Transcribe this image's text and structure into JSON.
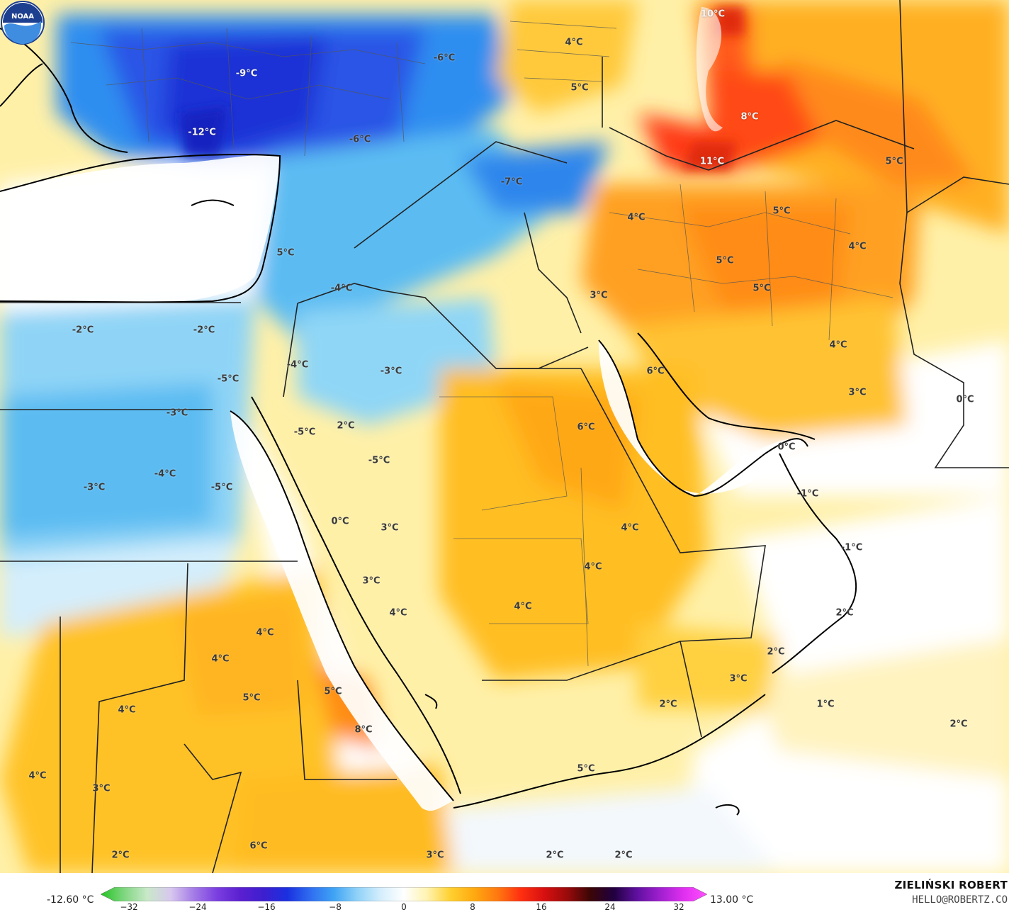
{
  "map": {
    "labels": [
      {
        "text": "10°C",
        "light": true
      },
      {
        "text": "-6°C",
        "light": false
      },
      {
        "text": "-9°C",
        "light": true
      },
      {
        "text": "-12°C",
        "light": true
      },
      {
        "text": "4°C",
        "light": false
      },
      {
        "text": "5°C",
        "light": false
      },
      {
        "text": "8°C",
        "light": true
      },
      {
        "text": "-6°C",
        "light": false
      },
      {
        "text": "-7°C",
        "light": false
      },
      {
        "text": "11°C",
        "light": true
      },
      {
        "text": "5°C",
        "light": false
      },
      {
        "text": "4°C",
        "light": false
      },
      {
        "text": "5°C",
        "light": false
      },
      {
        "text": "4°C",
        "light": false
      },
      {
        "text": "5°C",
        "light": false
      },
      {
        "text": "5°C",
        "light": false
      },
      {
        "text": "3°C",
        "light": false
      },
      {
        "text": "5°C",
        "light": false
      },
      {
        "text": "-4°C",
        "light": false
      },
      {
        "text": "-2°C",
        "light": false
      },
      {
        "text": "-2°C",
        "light": false
      },
      {
        "text": "4°C",
        "light": false
      },
      {
        "text": "6°C",
        "light": false
      },
      {
        "text": "3°C",
        "light": false
      },
      {
        "text": "0°C",
        "light": false
      },
      {
        "text": "-4°C",
        "light": false
      },
      {
        "text": "-3°C",
        "light": false
      },
      {
        "text": "-5°C",
        "light": false
      },
      {
        "text": "-3°C",
        "light": false
      },
      {
        "text": "-5°C",
        "light": false
      },
      {
        "text": "2°C",
        "light": false
      },
      {
        "text": "6°C",
        "light": false
      },
      {
        "text": "-5°C",
        "light": false
      },
      {
        "text": "-4°C",
        "light": false
      },
      {
        "text": "-3°C",
        "light": false
      },
      {
        "text": "-5°C",
        "light": false
      },
      {
        "text": "0°C",
        "light": false
      },
      {
        "text": "-1°C",
        "light": false
      },
      {
        "text": "0°C",
        "light": false
      },
      {
        "text": "3°C",
        "light": false
      },
      {
        "text": "4°C",
        "light": false
      },
      {
        "text": "-1°C",
        "light": false
      },
      {
        "text": "3°C",
        "light": false
      },
      {
        "text": "4°C",
        "light": false
      },
      {
        "text": "4°C",
        "light": false
      },
      {
        "text": "2°C",
        "light": false
      },
      {
        "text": "4°C",
        "light": false
      },
      {
        "text": "4°C",
        "light": false
      },
      {
        "text": "2°C",
        "light": false
      },
      {
        "text": "3°C",
        "light": false
      },
      {
        "text": "5°C",
        "light": false
      },
      {
        "text": "4°C",
        "light": false
      },
      {
        "text": "5°C",
        "light": false
      },
      {
        "text": "2°C",
        "light": false
      },
      {
        "text": "1°C",
        "light": false
      },
      {
        "text": "2°C",
        "light": false
      },
      {
        "text": "8°C",
        "light": false
      },
      {
        "text": "4°C",
        "light": false
      },
      {
        "text": "3°C",
        "light": false
      },
      {
        "text": "5°C",
        "light": false
      },
      {
        "text": "4°C",
        "light": false
      },
      {
        "text": "2°C",
        "light": false
      },
      {
        "text": "6°C",
        "light": false
      },
      {
        "text": "3°C",
        "light": false
      },
      {
        "text": "2°C",
        "light": false
      },
      {
        "text": "2°C",
        "light": false
      }
    ]
  },
  "legend": {
    "min_label": "-12.60 °C",
    "max_label": "13.00 °C",
    "ticks": [
      "−32",
      "−24",
      "−16",
      "−8",
      "0",
      "8",
      "16",
      "24",
      "32"
    ],
    "colors": [
      "#22c422",
      "#7fd67f",
      "#c9e8c9",
      "#d8c8ee",
      "#a47be6",
      "#7a3ee0",
      "#5a1fd0",
      "#3d1fcf",
      "#1a30e0",
      "#2f6ef0",
      "#3fa4f4",
      "#8fd2f8",
      "#d4eefc",
      "#ffffff",
      "#fff3b0",
      "#ffd030",
      "#ffaa10",
      "#ff7a10",
      "#ff3010",
      "#d81010",
      "#9a0a0a",
      "#3a0606",
      "#200040",
      "#6010a0",
      "#a020d0",
      "#e030f0",
      "#ff50ff"
    ]
  },
  "credit": {
    "name": "ZIELIŃSKI ROBERT",
    "email": "HELLO@ROBERTZ.CO"
  },
  "logo": {
    "text": "NOAA"
  }
}
